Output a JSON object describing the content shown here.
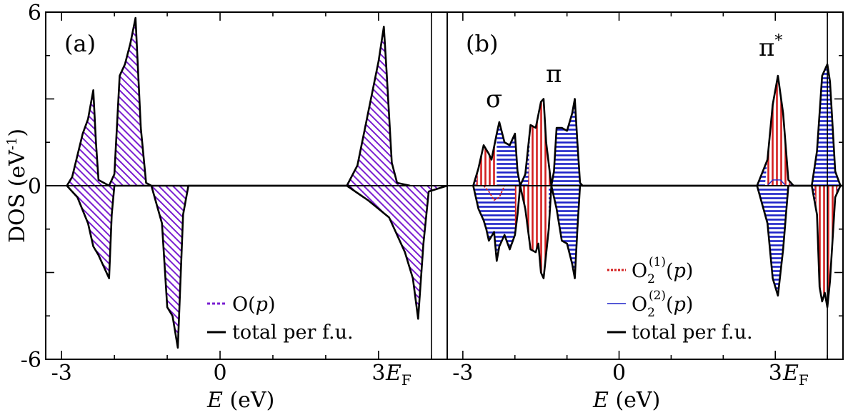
{
  "chart_data": [
    {
      "panel": "(a)",
      "type": "area",
      "xlabel_italic": "E",
      "xlabel_rest": " (eV)",
      "ylabel": "DOS (eV",
      "ylabel_sup": "-1",
      "ylabel_close": ")",
      "xlim": [
        -3.3,
        4.3
      ],
      "ylim": [
        -6,
        6
      ],
      "yticklabels": {
        "top": "6",
        "mid": "0",
        "bot": "-6"
      },
      "xticks": [
        -3,
        0,
        3
      ],
      "xticklabels": [
        "-3",
        "0",
        "3"
      ],
      "fermi_x": 4.0,
      "fermi_label_main": "E",
      "fermi_label_sub": "F",
      "series": [
        {
          "name": "total per f.u.",
          "up": [
            [
              -2.9,
              0
            ],
            [
              -2.8,
              0.3
            ],
            [
              -2.6,
              1.8
            ],
            [
              -2.5,
              2.3
            ],
            [
              -2.45,
              2.8
            ],
            [
              -2.4,
              3.3
            ],
            [
              -2.35,
              1.5
            ],
            [
              -2.3,
              0.2
            ],
            [
              -2.1,
              0
            ],
            [
              -2.0,
              0.4
            ],
            [
              -1.9,
              3.8
            ],
            [
              -1.8,
              4.2
            ],
            [
              -1.7,
              4.9
            ],
            [
              -1.6,
              5.8
            ],
            [
              -1.5,
              2.0
            ],
            [
              -1.4,
              0.1
            ],
            [
              -1.3,
              0
            ],
            [
              2.4,
              0
            ],
            [
              2.6,
              0.7
            ],
            [
              2.8,
              2.5
            ],
            [
              3.0,
              4.3
            ],
            [
              3.1,
              5.5
            ],
            [
              3.15,
              4.0
            ],
            [
              3.25,
              0.8
            ],
            [
              3.35,
              0.1
            ],
            [
              3.6,
              0
            ]
          ],
          "down": [
            [
              -2.9,
              0
            ],
            [
              -2.7,
              -0.4
            ],
            [
              -2.5,
              -1.3
            ],
            [
              -2.4,
              -2.1
            ],
            [
              -2.3,
              -2.4
            ],
            [
              -2.2,
              -2.8
            ],
            [
              -2.1,
              -3.2
            ],
            [
              -2.05,
              -1.0
            ],
            [
              -2.0,
              0
            ],
            [
              -1.3,
              0
            ],
            [
              -1.1,
              -1.3
            ],
            [
              -1.0,
              -4.2
            ],
            [
              -0.9,
              -4.5
            ],
            [
              -0.8,
              -5.6
            ],
            [
              -0.7,
              -1.0
            ],
            [
              -0.6,
              0
            ],
            [
              2.4,
              0
            ],
            [
              2.8,
              -0.5
            ],
            [
              3.2,
              -1.1
            ],
            [
              3.5,
              -2.3
            ],
            [
              3.65,
              -3.2
            ],
            [
              3.75,
              -4.6
            ],
            [
              3.85,
              -2.0
            ],
            [
              3.95,
              -0.2
            ],
            [
              4.3,
              0
            ]
          ]
        },
        {
          "name": "O(p)",
          "color": "#7a1fd1"
        }
      ],
      "legend": {
        "placement": "bottom-right",
        "entries": [
          {
            "label_main": "O(",
            "label_italic": "p",
            "label_close": ")"
          },
          {
            "label_main": "total per f.u."
          }
        ]
      }
    },
    {
      "panel": "(b)",
      "type": "area",
      "xlabel_italic": "E",
      "xlabel_rest": " (eV)",
      "xlim": [
        -3.3,
        4.3
      ],
      "ylim": [
        -6,
        6
      ],
      "xticks": [
        -3,
        0,
        3
      ],
      "xticklabels": [
        "-3",
        "0",
        "3"
      ],
      "fermi_x": 4.0,
      "fermi_label_main": "E",
      "fermi_label_sub": "F",
      "annotations": {
        "sigma": "σ",
        "pi": "π",
        "pistar": "π",
        "pistar_sup": "*"
      },
      "series": [
        {
          "name": "O2(1)(p)",
          "color": "#d42020"
        },
        {
          "name": "O2(2)(p)",
          "color": "#1f24c9"
        },
        {
          "name": "total per f.u.",
          "up": [
            [
              -2.8,
              0
            ],
            [
              -2.7,
              0.6
            ],
            [
              -2.6,
              1.4
            ],
            [
              -2.5,
              1.1
            ],
            [
              -2.45,
              0.9
            ],
            [
              -2.35,
              1.8
            ],
            [
              -2.3,
              2.2
            ],
            [
              -2.2,
              1.5
            ],
            [
              -2.1,
              1.4
            ],
            [
              -2.0,
              1.8
            ],
            [
              -1.95,
              0.5
            ],
            [
              -1.9,
              0
            ],
            [
              -1.8,
              0.4
            ],
            [
              -1.7,
              2.1
            ],
            [
              -1.6,
              2.0
            ],
            [
              -1.5,
              2.9
            ],
            [
              -1.45,
              3.0
            ],
            [
              -1.4,
              1.5
            ],
            [
              -1.3,
              0
            ],
            [
              -1.25,
              0.5
            ],
            [
              -1.2,
              2.0
            ],
            [
              -1.1,
              2.0
            ],
            [
              -1.0,
              1.9
            ],
            [
              -0.9,
              2.5
            ],
            [
              -0.85,
              3.0
            ],
            [
              -0.8,
              1.5
            ],
            [
              -0.75,
              0.1
            ],
            [
              -0.7,
              0
            ],
            [
              2.65,
              0
            ],
            [
              2.85,
              0.9
            ],
            [
              2.95,
              2.8
            ],
            [
              3.05,
              3.8
            ],
            [
              3.15,
              2.5
            ],
            [
              3.25,
              0.2
            ],
            [
              3.35,
              0
            ],
            [
              3.7,
              0
            ],
            [
              3.8,
              1.2
            ],
            [
              3.9,
              3.8
            ],
            [
              4.0,
              4.2
            ],
            [
              4.05,
              3.6
            ],
            [
              4.15,
              0.5
            ],
            [
              4.25,
              0
            ],
            [
              4.3,
              0
            ]
          ],
          "down": [
            [
              -2.8,
              0
            ],
            [
              -2.7,
              -0.8
            ],
            [
              -2.6,
              -1.2
            ],
            [
              -2.55,
              -1.5
            ],
            [
              -2.5,
              -1.9
            ],
            [
              -2.4,
              -1.6
            ],
            [
              -2.35,
              -2.6
            ],
            [
              -2.3,
              -2.1
            ],
            [
              -2.2,
              -1.7
            ],
            [
              -2.1,
              -2.2
            ],
            [
              -2.0,
              -1.7
            ],
            [
              -1.95,
              -1.0
            ],
            [
              -1.9,
              0
            ],
            [
              -1.8,
              -0.8
            ],
            [
              -1.7,
              -2.2
            ],
            [
              -1.6,
              -2.3
            ],
            [
              -1.55,
              -2.0
            ],
            [
              -1.5,
              -3.0
            ],
            [
              -1.45,
              -3.2
            ],
            [
              -1.35,
              -1.5
            ],
            [
              -1.3,
              0
            ],
            [
              -1.2,
              -0.8
            ],
            [
              -1.1,
              -1.9
            ],
            [
              -1.0,
              -2.0
            ],
            [
              -0.9,
              -2.7
            ],
            [
              -0.85,
              -3.2
            ],
            [
              -0.8,
              -1.5
            ],
            [
              -0.75,
              0
            ],
            [
              2.65,
              0
            ],
            [
              2.85,
              -1.3
            ],
            [
              2.95,
              -3.2
            ],
            [
              3.05,
              -3.8
            ],
            [
              3.15,
              -2.2
            ],
            [
              3.25,
              0
            ],
            [
              3.7,
              0
            ],
            [
              3.8,
              -1.0
            ],
            [
              3.85,
              -3.5
            ],
            [
              3.9,
              -4.0
            ],
            [
              3.95,
              -3.7
            ],
            [
              4.0,
              -4.2
            ],
            [
              4.05,
              -3.3
            ],
            [
              4.15,
              -0.4
            ],
            [
              4.25,
              0
            ],
            [
              4.3,
              0
            ]
          ]
        }
      ],
      "legend": {
        "placement": "bottom-right",
        "entries": [
          {
            "label_main": "O",
            "label_sub": "2",
            "label_sup": "(1)",
            "label_open": "(",
            "label_italic": "p",
            "label_close": ")"
          },
          {
            "label_main": "O",
            "label_sub": "2",
            "label_sup": "(2)",
            "label_open": "(",
            "label_italic": "p",
            "label_close": ")"
          },
          {
            "label_main": "total per f.u."
          }
        ]
      }
    }
  ]
}
